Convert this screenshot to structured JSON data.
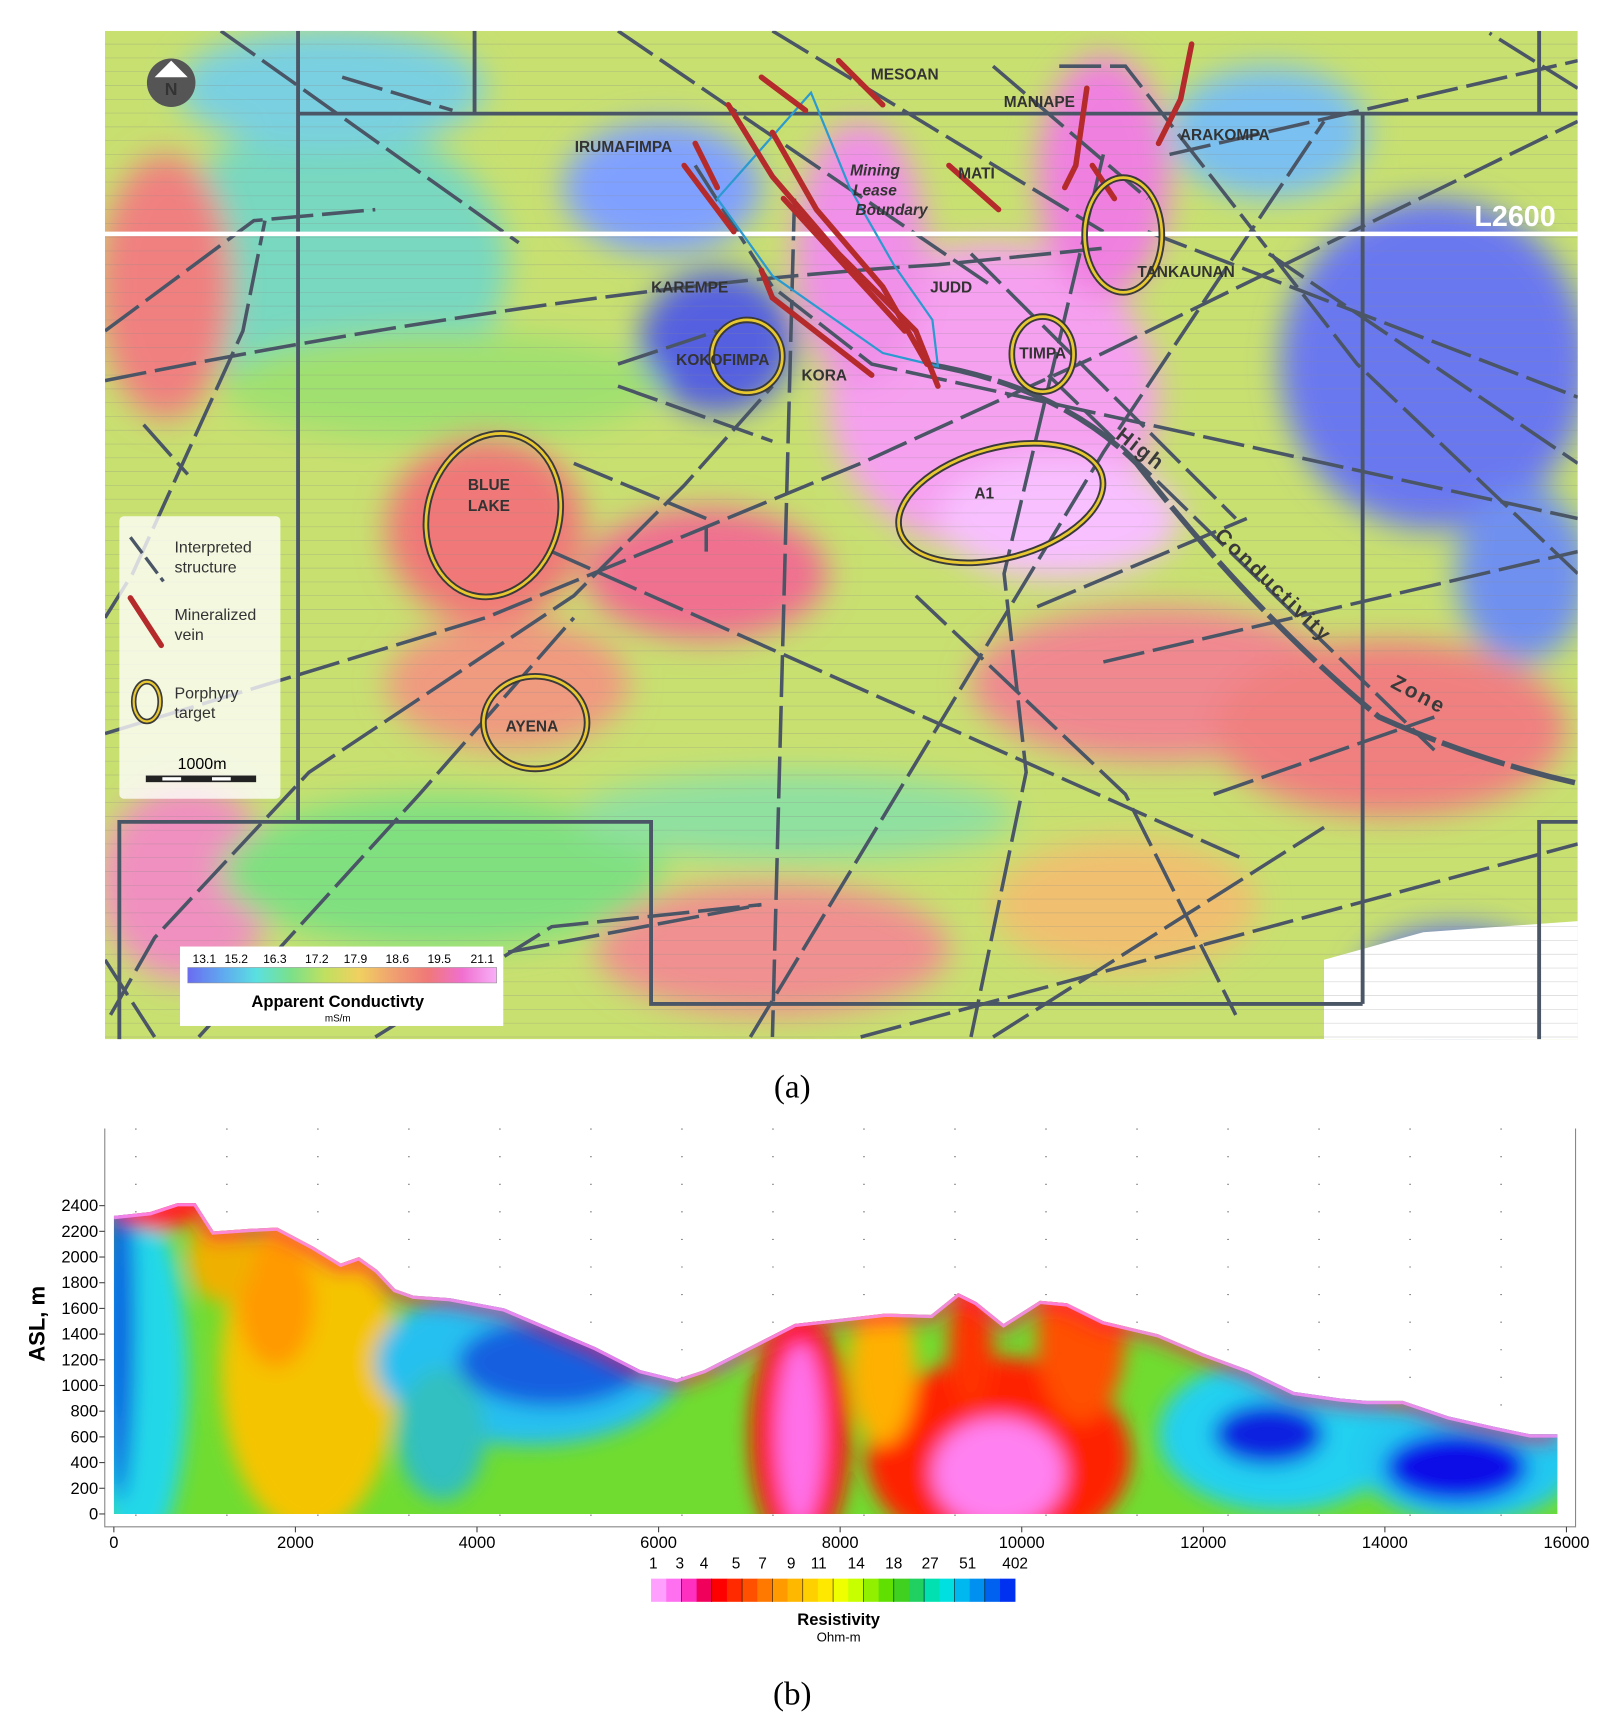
{
  "map": {
    "north": "N",
    "labels": [
      "MESOAN",
      "MANIAPE",
      "ARAKOMPA",
      "IRUMAFIMPA",
      "MATI",
      "KAREMPE",
      "JUDD",
      "TANKAUNAN",
      "KOKOFIMPA",
      "KORA",
      "TIMPA",
      "A1",
      "AYENA"
    ],
    "blue_lake": [
      "BLUE",
      "LAKE"
    ],
    "lease_label": [
      "Mining",
      "Lease",
      "Boundary"
    ],
    "section_line": "L2600",
    "zone_label": [
      "High",
      "Conductivity",
      "Zone"
    ],
    "legend": [
      [
        "Interpreted",
        "structure"
      ],
      [
        "Mineralized",
        "vein"
      ],
      [
        "Porphyry",
        "target"
      ]
    ],
    "scale_bar": "1000m",
    "colorbar": {
      "ticks": [
        13.1,
        15.2,
        16.3,
        17.2,
        17.9,
        18.6,
        19.5,
        21.1
      ],
      "colors": [
        "#6a6cf0",
        "#60a8f0",
        "#5ae0e0",
        "#7ae08a",
        "#c0e060",
        "#f0d060",
        "#f0a070",
        "#f07878",
        "#f070d0",
        "#f8b0f8"
      ],
      "title": "Apparent Conductivty",
      "unit": "mS/m"
    },
    "caption": "(a)"
  },
  "chart_data": {
    "type": "section",
    "ylabel": "ASL, m",
    "xlim": [
      -100,
      16100
    ],
    "xticks": [
      0,
      2000,
      4000,
      6000,
      8000,
      10000,
      12000,
      14000,
      16000
    ],
    "ylim": [
      -100,
      3000
    ],
    "yticks": [
      0,
      200,
      400,
      600,
      800,
      1000,
      1200,
      1400,
      1600,
      1800,
      2000,
      2200,
      2400
    ],
    "surface": {
      "x": [
        0,
        400,
        700,
        900,
        1100,
        1500,
        1800,
        2200,
        2500,
        2700,
        2900,
        3100,
        3300,
        3700,
        4300,
        4800,
        5300,
        5800,
        6200,
        6500,
        7000,
        7500,
        8000,
        8500,
        9000,
        9300,
        9500,
        9800,
        10200,
        10500,
        10900,
        11500,
        12000,
        12500,
        13000,
        13500,
        13800,
        14200,
        14700,
        15200,
        15600,
        15900
      ],
      "values": [
        2320,
        2350,
        2420,
        2420,
        2200,
        2220,
        2230,
        2080,
        1950,
        2000,
        1900,
        1750,
        1700,
        1680,
        1600,
        1450,
        1300,
        1120,
        1050,
        1120,
        1300,
        1480,
        1520,
        1560,
        1550,
        1720,
        1650,
        1480,
        1660,
        1640,
        1500,
        1400,
        1250,
        1120,
        950,
        900,
        880,
        880,
        760,
        680,
        620,
        620
      ]
    },
    "colorbar": {
      "ticks": [
        1,
        3,
        4,
        5,
        7,
        9,
        11,
        14,
        18,
        27,
        51,
        402
      ],
      "colors": [
        "#ffa0ff",
        "#ff70f0",
        "#ff30c0",
        "#f0005a",
        "#ff0000",
        "#ff2a00",
        "#ff5000",
        "#ff7800",
        "#ff9a00",
        "#ffb800",
        "#ffd000",
        "#ffe800",
        "#f0ff00",
        "#c8ff00",
        "#90f000",
        "#60e000",
        "#40d020",
        "#20d060",
        "#00e0b0",
        "#00e0e0",
        "#00b8f0",
        "#0090f0",
        "#0060f0",
        "#0030f0"
      ],
      "title": "Resistivity",
      "unit": "Ohm-m"
    },
    "caption": "(b)"
  }
}
